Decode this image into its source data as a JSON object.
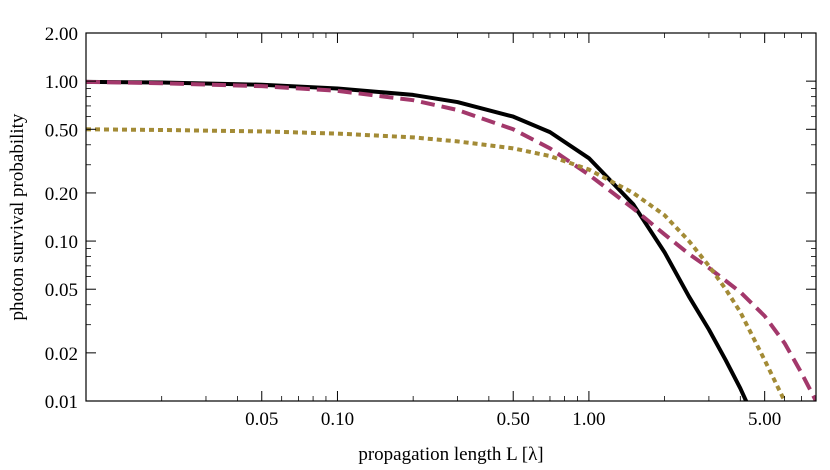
{
  "chart_data": {
    "type": "line",
    "title": "",
    "xlabel": "propagation length L [λ]",
    "ylabel": "photon survival probability",
    "xscale": "log",
    "yscale": "log",
    "xlim": [
      0.01,
      8.0
    ],
    "ylim": [
      0.01,
      2.0
    ],
    "xticks": [
      0.05,
      0.1,
      0.5,
      1.0,
      5.0
    ],
    "xtick_labels": [
      "0.05",
      "0.10",
      "0.50",
      "1.00",
      "5.00"
    ],
    "yticks": [
      0.01,
      0.02,
      0.05,
      0.1,
      0.2,
      0.5,
      1.0,
      2.0
    ],
    "ytick_labels": [
      "0.01",
      "0.02",
      "0.05",
      "0.10",
      "0.20",
      "0.50",
      "1.00",
      "2.00"
    ],
    "grid": false,
    "legend": "none",
    "series": [
      {
        "style": "solid",
        "color": "#000000",
        "x": [
          0.01,
          0.02,
          0.05,
          0.1,
          0.2,
          0.3,
          0.5,
          0.7,
          1.0,
          1.5,
          2.0,
          2.5,
          3.0,
          3.5,
          4.0,
          4.5
        ],
        "y": [
          0.99,
          0.98,
          0.95,
          0.9,
          0.82,
          0.74,
          0.6,
          0.48,
          0.33,
          0.17,
          0.085,
          0.045,
          0.028,
          0.018,
          0.012,
          0.008
        ]
      },
      {
        "style": "dashed",
        "color": "#a3386b",
        "x": [
          0.01,
          0.02,
          0.05,
          0.1,
          0.2,
          0.3,
          0.5,
          0.7,
          1.0,
          1.5,
          2.0,
          2.5,
          3.0,
          4.0,
          5.0,
          6.0,
          7.0,
          8.0
        ],
        "y": [
          0.99,
          0.97,
          0.93,
          0.87,
          0.76,
          0.66,
          0.5,
          0.38,
          0.26,
          0.16,
          0.11,
          0.083,
          0.068,
          0.048,
          0.034,
          0.023,
          0.015,
          0.01
        ]
      },
      {
        "style": "dotted",
        "color": "#a38b36",
        "x": [
          0.01,
          0.02,
          0.05,
          0.1,
          0.2,
          0.3,
          0.5,
          0.7,
          1.0,
          1.5,
          2.0,
          2.5,
          3.0,
          3.5,
          4.0,
          5.0,
          6.0,
          7.0
        ],
        "y": [
          0.5,
          0.495,
          0.485,
          0.47,
          0.445,
          0.42,
          0.38,
          0.34,
          0.28,
          0.2,
          0.145,
          0.1,
          0.07,
          0.05,
          0.036,
          0.018,
          0.01,
          0.006
        ]
      }
    ]
  }
}
